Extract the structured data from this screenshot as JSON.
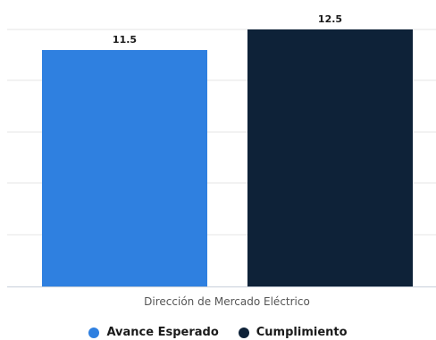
{
  "chart_data": {
    "type": "bar",
    "categories": [
      "Dirección de Mercado Eléctrico"
    ],
    "series": [
      {
        "name": "Avance Esperado",
        "values": [
          11.5
        ],
        "value_label": "11.5",
        "color": "#2f80e0"
      },
      {
        "name": "Cumplimiento",
        "values": [
          12.5
        ],
        "value_label": "12.5",
        "color": "#0e2238"
      }
    ],
    "ylim": [
      0,
      12.5
    ],
    "grid": true,
    "legend_position": "bottom-center",
    "gridline_color": "#e4e4e4",
    "axis_color": "#c8d0da"
  }
}
